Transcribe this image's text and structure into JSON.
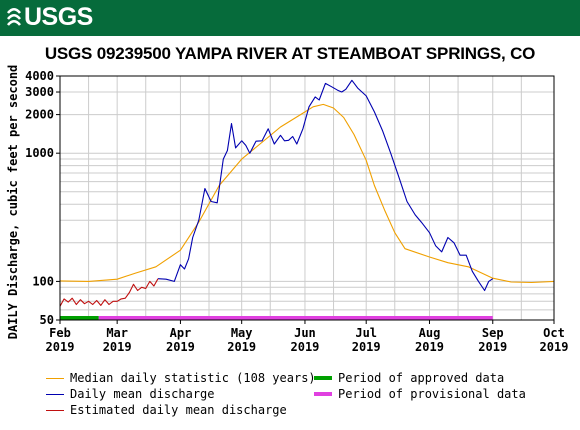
{
  "header": {
    "logo_text": "USGS",
    "banner_color": "#066b3b"
  },
  "colors": {
    "median": "#f0a000",
    "daily_mean": "#0000b0",
    "estimated": "#c01010",
    "approved": "#00a000",
    "provisional": "#e040e0",
    "grid": "#cccccc"
  },
  "chart_data": {
    "type": "line",
    "title": "USGS 09239500 YAMPA RIVER AT STEAMBOAT SPRINGS, CO",
    "ylabel": "DAILY Discharge, cubic feet per second",
    "xlabel": "",
    "y_scale": "log",
    "ylim": [
      50,
      4000
    ],
    "y_ticks": [
      50,
      100,
      1000,
      2000,
      3000,
      4000
    ],
    "y_tick_labels": [
      "50",
      "100",
      "1000",
      "2000",
      "3000",
      "4000"
    ],
    "x_ticks": [
      {
        "date": "2019-02-01",
        "month": "Feb",
        "year": "2019"
      },
      {
        "date": "2019-03-01",
        "month": "Mar",
        "year": "2019"
      },
      {
        "date": "2019-04-01",
        "month": "Apr",
        "year": "2019"
      },
      {
        "date": "2019-05-01",
        "month": "May",
        "year": "2019"
      },
      {
        "date": "2019-06-01",
        "month": "Jun",
        "year": "2019"
      },
      {
        "date": "2019-07-01",
        "month": "Jul",
        "year": "2019"
      },
      {
        "date": "2019-08-01",
        "month": "Aug",
        "year": "2019"
      },
      {
        "date": "2019-09-01",
        "month": "Sep",
        "year": "2019"
      },
      {
        "date": "2019-10-01",
        "month": "Oct",
        "year": "2019"
      }
    ],
    "xlim": [
      "2019-02-01",
      "2019-10-01"
    ],
    "grid": true,
    "legend_position": "bottom",
    "series": [
      {
        "name": "Median daily statistic (108 years)",
        "x": [
          "2019-02-01",
          "2019-02-15",
          "2019-03-01",
          "2019-03-10",
          "2019-03-20",
          "2019-04-01",
          "2019-04-10",
          "2019-04-20",
          "2019-05-01",
          "2019-05-10",
          "2019-05-20",
          "2019-06-01",
          "2019-06-05",
          "2019-06-10",
          "2019-06-15",
          "2019-06-20",
          "2019-06-25",
          "2019-07-01",
          "2019-07-05",
          "2019-07-10",
          "2019-07-15",
          "2019-07-20",
          "2019-08-01",
          "2019-08-10",
          "2019-08-20",
          "2019-09-01",
          "2019-09-10",
          "2019-09-20",
          "2019-10-01"
        ],
        "y": [
          101,
          100,
          104,
          116,
          130,
          175,
          290,
          560,
          900,
          1180,
          1600,
          2100,
          2300,
          2400,
          2250,
          1900,
          1400,
          880,
          560,
          360,
          240,
          180,
          155,
          140,
          130,
          106,
          99,
          98,
          100
        ]
      },
      {
        "name": "Daily mean discharge",
        "x": [
          "2019-03-21",
          "2019-03-25",
          "2019-03-29",
          "2019-04-01",
          "2019-04-03",
          "2019-04-05",
          "2019-04-07",
          "2019-04-10",
          "2019-04-13",
          "2019-04-16",
          "2019-04-19",
          "2019-04-22",
          "2019-04-24",
          "2019-04-26",
          "2019-04-28",
          "2019-05-01",
          "2019-05-03",
          "2019-05-05",
          "2019-05-08",
          "2019-05-11",
          "2019-05-14",
          "2019-05-17",
          "2019-05-20",
          "2019-05-22",
          "2019-05-24",
          "2019-05-26",
          "2019-05-28",
          "2019-05-31",
          "2019-06-03",
          "2019-06-06",
          "2019-06-08",
          "2019-06-11",
          "2019-06-14",
          "2019-06-17",
          "2019-06-19",
          "2019-06-21",
          "2019-06-24",
          "2019-06-27",
          "2019-07-01",
          "2019-07-05",
          "2019-07-09",
          "2019-07-13",
          "2019-07-17",
          "2019-07-21",
          "2019-07-25",
          "2019-07-28",
          "2019-08-01",
          "2019-08-04",
          "2019-08-07",
          "2019-08-10",
          "2019-08-13",
          "2019-08-16",
          "2019-08-19",
          "2019-08-22",
          "2019-08-25",
          "2019-08-28",
          "2019-08-30",
          "2019-09-01"
        ],
        "y": [
          105,
          104,
          100,
          135,
          125,
          150,
          220,
          300,
          530,
          420,
          410,
          900,
          1050,
          1700,
          1100,
          1250,
          1150,
          1000,
          1240,
          1250,
          1550,
          1180,
          1380,
          1250,
          1260,
          1350,
          1180,
          1550,
          2300,
          2750,
          2600,
          3500,
          3300,
          3100,
          3000,
          3150,
          3700,
          3200,
          2800,
          2100,
          1500,
          1000,
          650,
          420,
          330,
          290,
          240,
          190,
          170,
          220,
          200,
          160,
          160,
          120,
          100,
          85,
          100,
          105
        ]
      },
      {
        "name": "Estimated daily mean discharge",
        "x": [
          "2019-02-01",
          "2019-02-03",
          "2019-02-05",
          "2019-02-07",
          "2019-02-09",
          "2019-02-11",
          "2019-02-13",
          "2019-02-15",
          "2019-02-17",
          "2019-02-19",
          "2019-02-21",
          "2019-02-23",
          "2019-02-25",
          "2019-02-27",
          "2019-03-01",
          "2019-03-03",
          "2019-03-05",
          "2019-03-07",
          "2019-03-09",
          "2019-03-11",
          "2019-03-13",
          "2019-03-15",
          "2019-03-17",
          "2019-03-19",
          "2019-03-21"
        ],
        "y": [
          64,
          73,
          69,
          74,
          66,
          72,
          67,
          70,
          66,
          71,
          65,
          72,
          66,
          70,
          70,
          73,
          74,
          82,
          95,
          85,
          90,
          88,
          100,
          92,
          105
        ]
      }
    ],
    "periods": [
      {
        "name": "Period of approved data",
        "start": "2019-02-01",
        "end": "2019-02-20"
      },
      {
        "name": "Period of provisional data",
        "start": "2019-02-20",
        "end": "2019-09-01"
      }
    ]
  }
}
